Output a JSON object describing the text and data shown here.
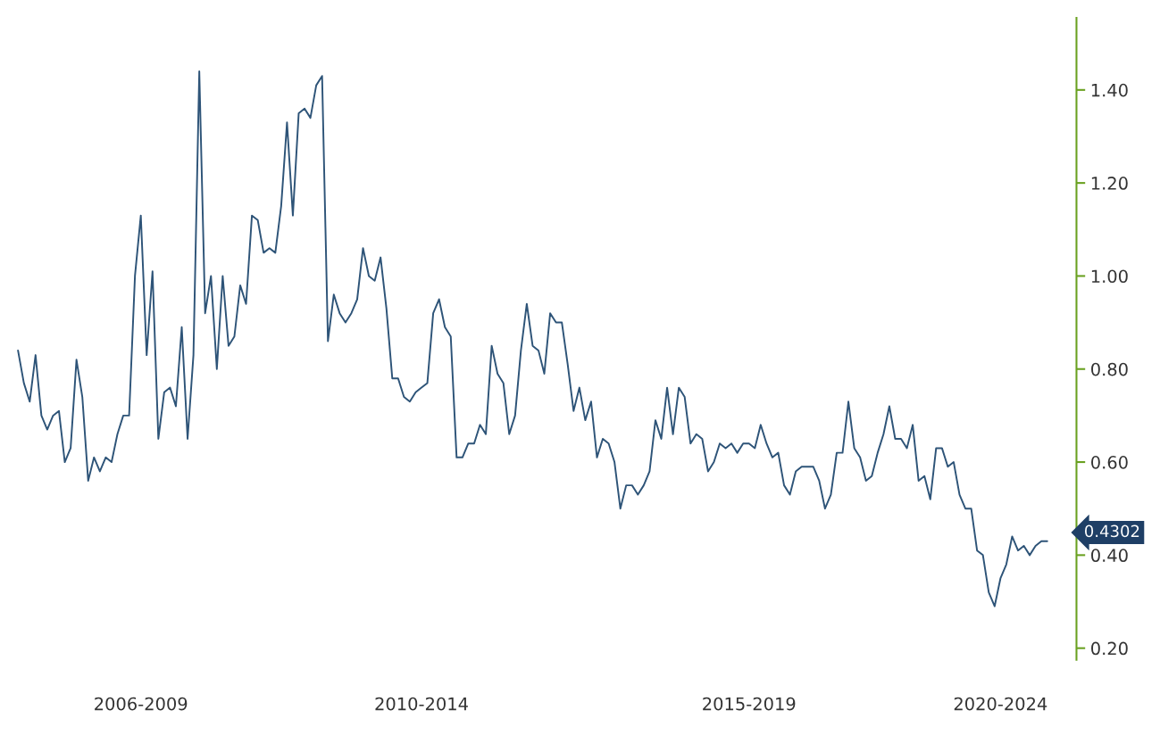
{
  "chart_data": {
    "type": "line",
    "categories": [
      null,
      null,
      null,
      null,
      null,
      null,
      null,
      null,
      null,
      null,
      null,
      null,
      null,
      null,
      null,
      null,
      null,
      null,
      null,
      null,
      null,
      "2006-2009",
      null,
      null,
      null,
      null,
      null,
      null,
      null,
      null,
      null,
      null,
      null,
      null,
      null,
      null,
      null,
      null,
      null,
      null,
      null,
      null,
      null,
      null,
      null,
      null,
      null,
      null,
      null,
      null,
      null,
      null,
      null,
      null,
      null,
      null,
      null,
      null,
      null,
      null,
      null,
      null,
      null,
      null,
      null,
      null,
      null,
      null,
      null,
      "2010-2014",
      null,
      null,
      null,
      null,
      null,
      null,
      null,
      null,
      null,
      null,
      null,
      null,
      null,
      null,
      null,
      null,
      null,
      null,
      null,
      null,
      null,
      null,
      null,
      null,
      null,
      null,
      null,
      null,
      null,
      null,
      null,
      null,
      null,
      null,
      null,
      null,
      null,
      null,
      null,
      null,
      null,
      null,
      null,
      null,
      null,
      null,
      null,
      null,
      null,
      null,
      null,
      null,
      null,
      null,
      null,
      "2015-2019",
      null,
      null,
      null,
      null,
      null,
      null,
      null,
      null,
      null,
      null,
      null,
      null,
      null,
      null,
      null,
      null,
      null,
      null,
      null,
      null,
      null,
      null,
      null,
      null,
      null,
      null,
      null,
      null,
      null,
      null,
      null,
      null,
      null,
      null,
      null,
      null,
      null,
      null,
      null,
      null,
      null,
      null,
      "2020-2024",
      null,
      null,
      null,
      null,
      null,
      null,
      null,
      null
    ],
    "series": [
      {
        "color": "#2e5478",
        "values": [
          0.84,
          0.77,
          0.73,
          0.83,
          0.7,
          0.67,
          0.7,
          0.71,
          0.6,
          0.63,
          0.82,
          0.74,
          0.56,
          0.61,
          0.58,
          0.61,
          0.6,
          0.66,
          0.7,
          0.7,
          1.0,
          1.13,
          0.83,
          1.01,
          0.65,
          0.75,
          0.76,
          0.72,
          0.89,
          0.65,
          0.83,
          1.44,
          0.92,
          1.0,
          0.8,
          1.0,
          0.85,
          0.87,
          0.98,
          0.94,
          1.13,
          1.12,
          1.05,
          1.06,
          1.05,
          1.15,
          1.33,
          1.13,
          1.35,
          1.36,
          1.34,
          1.41,
          1.43,
          0.86,
          0.96,
          0.92,
          0.9,
          0.92,
          0.95,
          1.06,
          1.0,
          0.99,
          1.04,
          0.93,
          0.78,
          0.78,
          0.74,
          0.73,
          0.75,
          0.76,
          0.77,
          0.92,
          0.95,
          0.89,
          0.87,
          0.61,
          0.61,
          0.64,
          0.64,
          0.68,
          0.66,
          0.85,
          0.79,
          0.77,
          0.66,
          0.7,
          0.84,
          0.94,
          0.85,
          0.84,
          0.79,
          0.92,
          0.9,
          0.9,
          0.81,
          0.71,
          0.76,
          0.69,
          0.73,
          0.61,
          0.65,
          0.64,
          0.6,
          0.5,
          0.55,
          0.55,
          0.53,
          0.55,
          0.58,
          0.69,
          0.65,
          0.76,
          0.66,
          0.76,
          0.74,
          0.64,
          0.66,
          0.65,
          0.58,
          0.6,
          0.64,
          0.63,
          0.64,
          0.62,
          0.64,
          0.64,
          0.63,
          0.68,
          0.64,
          0.61,
          0.62,
          0.55,
          0.53,
          0.58,
          0.59,
          0.59,
          0.59,
          0.56,
          0.5,
          0.53,
          0.62,
          0.62,
          0.73,
          0.63,
          0.61,
          0.56,
          0.57,
          0.62,
          0.66,
          0.72,
          0.65,
          0.65,
          0.63,
          0.68,
          0.56,
          0.57,
          0.52,
          0.63,
          0.63,
          0.59,
          0.6,
          0.53,
          0.5,
          0.5,
          0.41,
          0.4,
          0.32,
          0.29,
          0.35,
          0.38,
          0.44,
          0.41,
          0.42,
          0.4,
          0.42,
          0.43,
          0.43
        ]
      }
    ],
    "ylim": [
      0.175,
      1.555
    ],
    "yticks": [
      {
        "value": 0.2,
        "label": "0.20"
      },
      {
        "value": 0.4,
        "label": "0.40"
      },
      {
        "value": 0.6,
        "label": "0.60"
      },
      {
        "value": 0.8,
        "label": "0.80"
      },
      {
        "value": 1.0,
        "label": "1.00"
      },
      {
        "value": 1.2,
        "label": "1.20"
      },
      {
        "value": 1.4,
        "label": "1.40"
      }
    ],
    "annotations": [
      "0.4302"
    ],
    "grid": false,
    "legend": false
  }
}
